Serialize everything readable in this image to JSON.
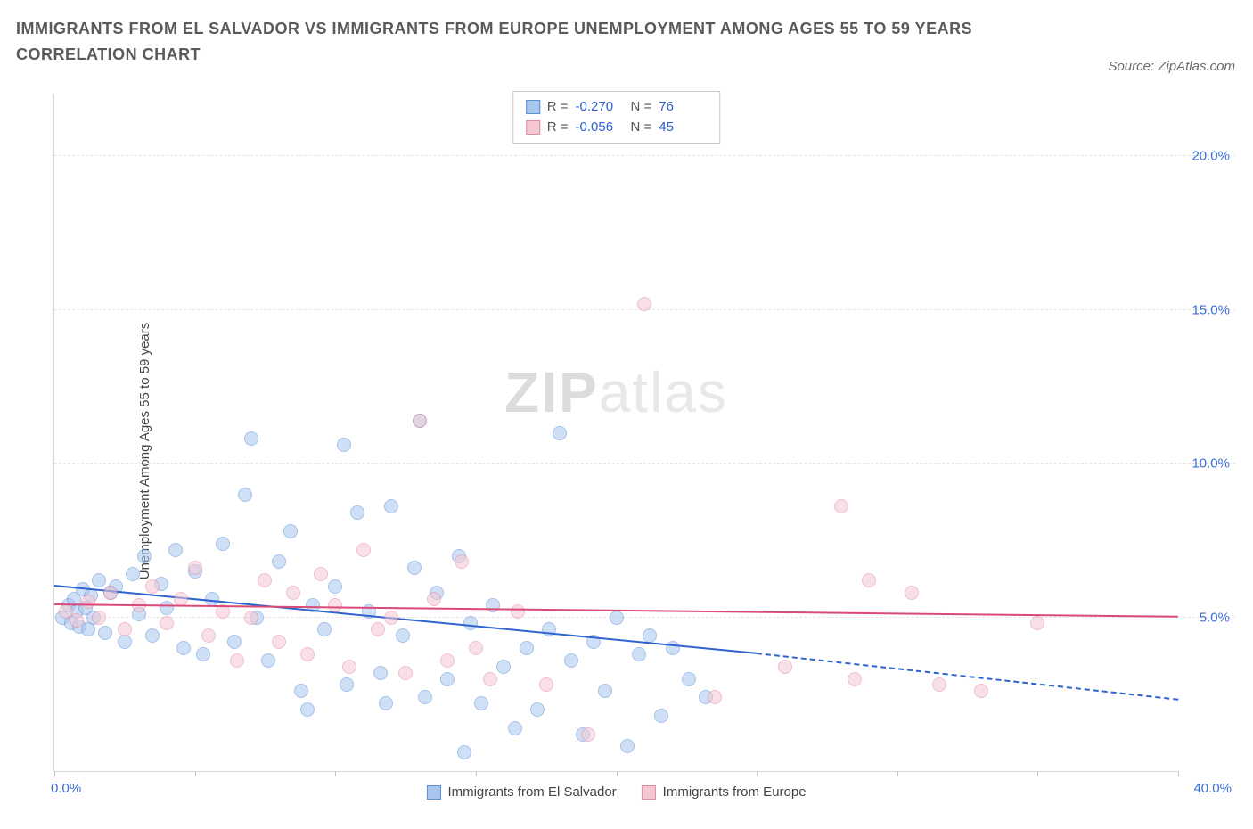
{
  "title": "IMMIGRANTS FROM EL SALVADOR VS IMMIGRANTS FROM EUROPE UNEMPLOYMENT AMONG AGES 55 TO 59 YEARS CORRELATION CHART",
  "source": "Source: ZipAtlas.com",
  "watermark_a": "ZIP",
  "watermark_b": "atlas",
  "chart": {
    "type": "scatter",
    "ylabel": "Unemployment Among Ages 55 to 59 years",
    "xlim": [
      0,
      40
    ],
    "ylim": [
      0,
      22
    ],
    "xtick_positions": [
      0,
      5,
      10,
      15,
      20,
      25,
      30,
      35,
      40
    ],
    "xlim_labels": {
      "left": "0.0%",
      "right": "40.0%"
    },
    "yticks": [
      5,
      10,
      15,
      20
    ],
    "ytick_labels": [
      "5.0%",
      "10.0%",
      "15.0%",
      "20.0%"
    ],
    "grid_color": "#e6e6e6",
    "axis_color": "#d8d8d8",
    "background_color": "#ffffff",
    "tick_label_color": "#3b6fd6",
    "marker_radius": 8,
    "marker_opacity": 0.55,
    "series": [
      {
        "id": "el_salvador",
        "label": "Immigrants from El Salvador",
        "color_fill": "#a9c6ef",
        "color_stroke": "#5b8fd8",
        "R": "-0.270",
        "N": "76",
        "trend": {
          "x1": 0,
          "y1": 6.0,
          "x2": 25,
          "y2": 3.8,
          "ext_x2": 40,
          "ext_y2": 2.3,
          "color": "#2f63cf",
          "width": 2
        },
        "points": [
          [
            0.3,
            5.0
          ],
          [
            0.5,
            5.4
          ],
          [
            0.6,
            4.8
          ],
          [
            0.7,
            5.6
          ],
          [
            0.8,
            5.2
          ],
          [
            0.9,
            4.7
          ],
          [
            1.0,
            5.9
          ],
          [
            1.1,
            5.3
          ],
          [
            1.2,
            4.6
          ],
          [
            1.3,
            5.7
          ],
          [
            1.4,
            5.0
          ],
          [
            1.6,
            6.2
          ],
          [
            1.8,
            4.5
          ],
          [
            2.0,
            5.8
          ],
          [
            2.2,
            6.0
          ],
          [
            2.5,
            4.2
          ],
          [
            2.8,
            6.4
          ],
          [
            3.0,
            5.1
          ],
          [
            3.2,
            7.0
          ],
          [
            3.5,
            4.4
          ],
          [
            3.8,
            6.1
          ],
          [
            4.0,
            5.3
          ],
          [
            4.3,
            7.2
          ],
          [
            4.6,
            4.0
          ],
          [
            5.0,
            6.5
          ],
          [
            5.3,
            3.8
          ],
          [
            5.6,
            5.6
          ],
          [
            6.0,
            7.4
          ],
          [
            6.4,
            4.2
          ],
          [
            6.8,
            9.0
          ],
          [
            7.2,
            5.0
          ],
          [
            7.6,
            3.6
          ],
          [
            8.0,
            6.8
          ],
          [
            8.4,
            7.8
          ],
          [
            8.8,
            2.6
          ],
          [
            9.2,
            5.4
          ],
          [
            9.6,
            4.6
          ],
          [
            10.0,
            6.0
          ],
          [
            10.4,
            2.8
          ],
          [
            10.8,
            8.4
          ],
          [
            11.2,
            5.2
          ],
          [
            11.6,
            3.2
          ],
          [
            12.0,
            8.6
          ],
          [
            12.4,
            4.4
          ],
          [
            12.8,
            6.6
          ],
          [
            13.2,
            2.4
          ],
          [
            13.6,
            5.8
          ],
          [
            14.0,
            3.0
          ],
          [
            14.4,
            7.0
          ],
          [
            14.8,
            4.8
          ],
          [
            15.2,
            2.2
          ],
          [
            15.6,
            5.4
          ],
          [
            16.0,
            3.4
          ],
          [
            16.4,
            1.4
          ],
          [
            16.8,
            4.0
          ],
          [
            17.2,
            2.0
          ],
          [
            17.6,
            4.6
          ],
          [
            18.0,
            11.0
          ],
          [
            18.4,
            3.6
          ],
          [
            18.8,
            1.2
          ],
          [
            19.2,
            4.2
          ],
          [
            19.6,
            2.6
          ],
          [
            20.0,
            5.0
          ],
          [
            20.4,
            0.8
          ],
          [
            20.8,
            3.8
          ],
          [
            21.2,
            4.4
          ],
          [
            21.6,
            1.8
          ],
          [
            22.0,
            4.0
          ],
          [
            22.6,
            3.0
          ],
          [
            23.2,
            2.4
          ],
          [
            10.3,
            10.6
          ],
          [
            7.0,
            10.8
          ],
          [
            13.0,
            11.4
          ],
          [
            9.0,
            2.0
          ],
          [
            11.8,
            2.2
          ],
          [
            14.6,
            0.6
          ]
        ]
      },
      {
        "id": "europe",
        "label": "Immigrants from Europe",
        "color_fill": "#f4c8d2",
        "color_stroke": "#e48aa3",
        "R": "-0.056",
        "N": "45",
        "trend": {
          "x1": 0,
          "y1": 5.4,
          "x2": 40,
          "y2": 5.0,
          "color": "#d94a78",
          "width": 2
        },
        "points": [
          [
            0.4,
            5.2
          ],
          [
            0.8,
            4.9
          ],
          [
            1.2,
            5.5
          ],
          [
            1.6,
            5.0
          ],
          [
            2.0,
            5.8
          ],
          [
            2.5,
            4.6
          ],
          [
            3.0,
            5.4
          ],
          [
            3.5,
            6.0
          ],
          [
            4.0,
            4.8
          ],
          [
            4.5,
            5.6
          ],
          [
            5.0,
            6.6
          ],
          [
            5.5,
            4.4
          ],
          [
            6.0,
            5.2
          ],
          [
            6.5,
            3.6
          ],
          [
            7.0,
            5.0
          ],
          [
            7.5,
            6.2
          ],
          [
            8.0,
            4.2
          ],
          [
            8.5,
            5.8
          ],
          [
            9.0,
            3.8
          ],
          [
            9.5,
            6.4
          ],
          [
            10.0,
            5.4
          ],
          [
            10.5,
            3.4
          ],
          [
            11.0,
            7.2
          ],
          [
            11.5,
            4.6
          ],
          [
            12.0,
            5.0
          ],
          [
            12.5,
            3.2
          ],
          [
            13.0,
            11.4
          ],
          [
            13.5,
            5.6
          ],
          [
            14.0,
            3.6
          ],
          [
            14.5,
            6.8
          ],
          [
            15.0,
            4.0
          ],
          [
            15.5,
            3.0
          ],
          [
            16.5,
            5.2
          ],
          [
            17.5,
            2.8
          ],
          [
            19.0,
            1.2
          ],
          [
            21.0,
            15.2
          ],
          [
            23.5,
            2.4
          ],
          [
            26.0,
            3.4
          ],
          [
            28.0,
            8.6
          ],
          [
            29.0,
            6.2
          ],
          [
            30.5,
            5.8
          ],
          [
            33.0,
            2.6
          ],
          [
            35.0,
            4.8
          ],
          [
            28.5,
            3.0
          ],
          [
            31.5,
            2.8
          ]
        ]
      }
    ]
  },
  "stats_labels": {
    "R": "R =",
    "N": "N ="
  }
}
